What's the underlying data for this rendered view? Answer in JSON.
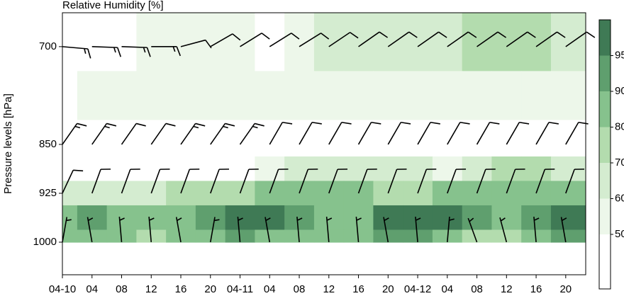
{
  "chart_data": {
    "type": "contour",
    "title": "Relative Humidity [%]",
    "y_label": "Pressure levels [hPa]",
    "x": [
      0,
      4,
      8,
      12,
      16,
      20,
      24,
      28,
      32,
      36,
      40,
      44,
      48,
      52,
      56,
      60,
      64,
      68
    ],
    "xlim": [
      0,
      70.7
    ],
    "xticks": [
      {
        "value": 0,
        "label": "04-10"
      },
      {
        "value": 4,
        "label": "04"
      },
      {
        "value": 8,
        "label": "08"
      },
      {
        "value": 12,
        "label": "12"
      },
      {
        "value": 16,
        "label": "16"
      },
      {
        "value": 20,
        "label": "20"
      },
      {
        "value": 24,
        "label": "04-11"
      },
      {
        "value": 28,
        "label": "04"
      },
      {
        "value": 32,
        "label": "08"
      },
      {
        "value": 36,
        "label": "12"
      },
      {
        "value": 40,
        "label": "16"
      },
      {
        "value": 44,
        "label": "20"
      },
      {
        "value": 48,
        "label": "04-12"
      },
      {
        "value": 52,
        "label": "04"
      },
      {
        "value": 56,
        "label": "08"
      },
      {
        "value": 60,
        "label": "12"
      },
      {
        "value": 64,
        "label": "16"
      },
      {
        "value": 68,
        "label": "20"
      }
    ],
    "ylim": [
      1050,
      648
    ],
    "yticks": [
      700,
      850,
      925,
      1000
    ],
    "levels": [
      700,
      775,
      850,
      887,
      925,
      962,
      1000
    ],
    "rh": [
      [
        42,
        44,
        46,
        52,
        55,
        55,
        52,
        48,
        56,
        60,
        62,
        62,
        63,
        65,
        70,
        74,
        72,
        65
      ],
      [
        48,
        52,
        54,
        55,
        55,
        54,
        52,
        52,
        53,
        54,
        55,
        55,
        54,
        54,
        55,
        55,
        54,
        52
      ],
      [
        42,
        42,
        43,
        43,
        42,
        42,
        43,
        44,
        44,
        43,
        42,
        42,
        43,
        44,
        44,
        43,
        42,
        42
      ],
      [
        45,
        45,
        45,
        46,
        46,
        46,
        47,
        50,
        62,
        66,
        68,
        64,
        60,
        55,
        68,
        72,
        70,
        60
      ],
      [
        62,
        65,
        66,
        68,
        70,
        72,
        75,
        80,
        86,
        86,
        84,
        76,
        78,
        86,
        88,
        86,
        82,
        88
      ],
      [
        88,
        90,
        88,
        85,
        86,
        92,
        95,
        96,
        94,
        88,
        89,
        96,
        96,
        96,
        90,
        87,
        94,
        96
      ],
      [
        88,
        82,
        80,
        78,
        80,
        88,
        90,
        88,
        82,
        84,
        88,
        90,
        92,
        88,
        72,
        70,
        88,
        90
      ]
    ],
    "colorbar": {
      "levels": [
        50,
        60,
        70,
        80,
        90,
        95
      ],
      "colors": [
        "#ffffff",
        "#edf7ea",
        "#d4ecd0",
        "#b3dcae",
        "#86c28d",
        "#5f9f6e",
        "#3f7a55"
      ]
    },
    "wind": {
      "levels": [
        700,
        850,
        925,
        1000
      ],
      "speed": [
        [
          15,
          15,
          15,
          15,
          10,
          10,
          10,
          10,
          10,
          10,
          10,
          10,
          10,
          10,
          10,
          10,
          10,
          10
        ],
        [
          15,
          15,
          10,
          10,
          15,
          15,
          15,
          10,
          10,
          10,
          10,
          10,
          10,
          10,
          10,
          10,
          10,
          10
        ],
        [
          10,
          10,
          10,
          10,
          10,
          10,
          10,
          10,
          10,
          10,
          10,
          10,
          10,
          10,
          10,
          10,
          10,
          10
        ],
        [
          5,
          5,
          5,
          5,
          5,
          5,
          5,
          5,
          5,
          5,
          5,
          5,
          5,
          5,
          5,
          5,
          5,
          5
        ]
      ],
      "direction": [
        [
          95,
          92,
          92,
          90,
          75,
          60,
          58,
          58,
          58,
          56,
          55,
          55,
          55,
          55,
          55,
          55,
          55,
          55
        ],
        [
          35,
          35,
          35,
          35,
          35,
          35,
          35,
          30,
          30,
          30,
          30,
          30,
          30,
          30,
          30,
          30,
          30,
          30
        ],
        [
          25,
          20,
          20,
          20,
          20,
          20,
          20,
          20,
          20,
          20,
          20,
          20,
          20,
          20,
          20,
          20,
          20,
          20
        ],
        [
          10,
          350,
          355,
          355,
          350,
          10,
          355,
          350,
          355,
          355,
          355,
          350,
          355,
          5,
          340,
          345,
          355,
          350
        ]
      ]
    }
  }
}
